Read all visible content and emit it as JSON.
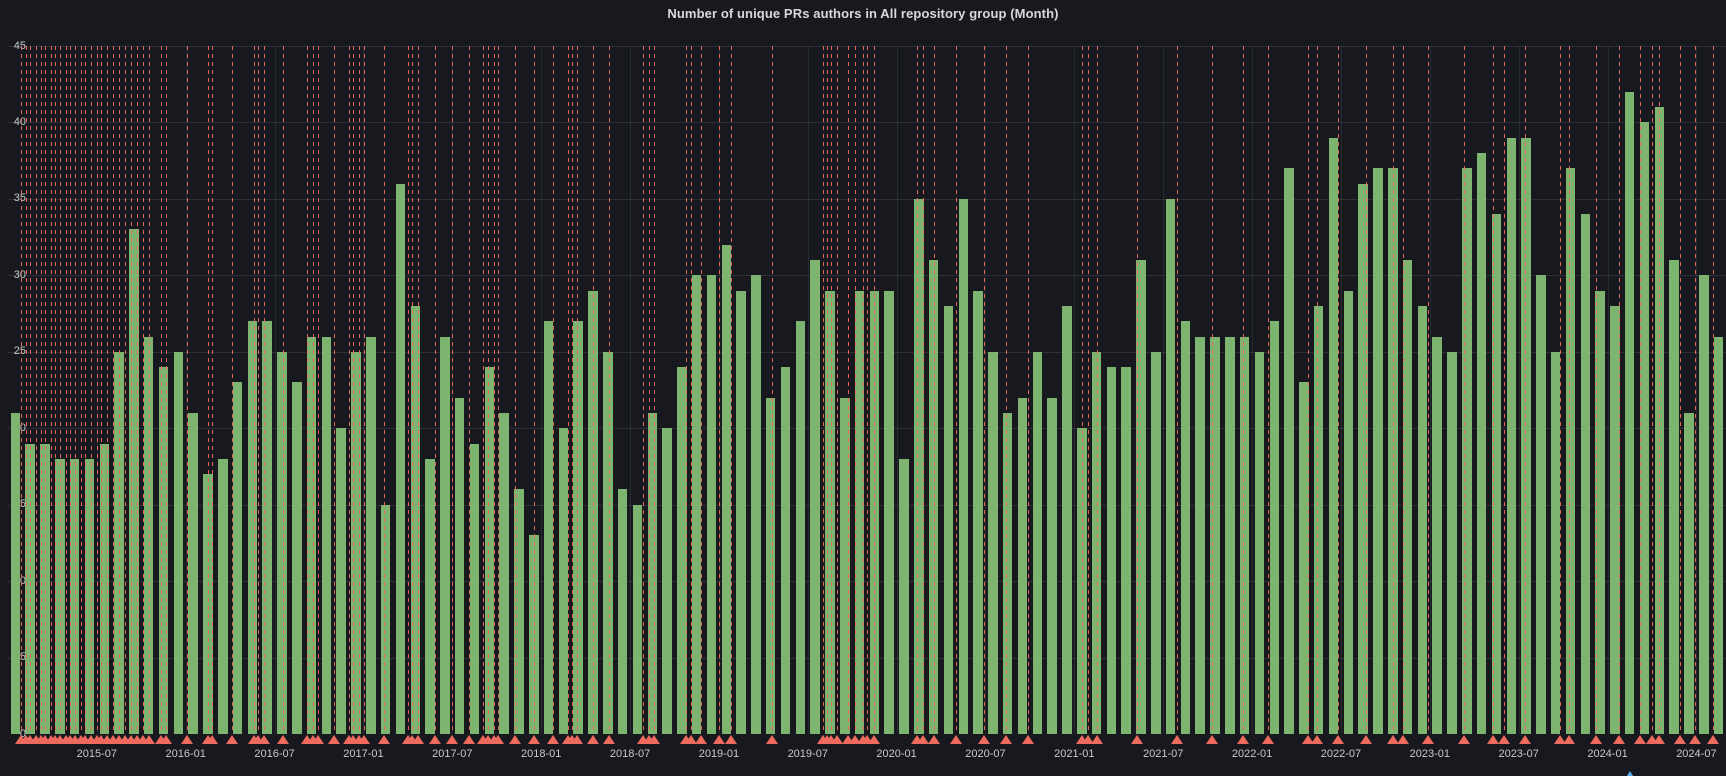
{
  "panel": {
    "title": "Number of unique PRs authors in All repository group (Month)"
  },
  "chart_data": {
    "type": "bar",
    "title": "Number of unique PRs authors in All repository group (Month)",
    "xlabel": "",
    "ylabel": "",
    "ylim": [
      0,
      45
    ],
    "y_ticks": [
      0,
      5,
      10,
      15,
      20,
      25,
      30,
      35,
      40,
      45
    ],
    "grid": true,
    "legend_position": "none",
    "bar_color": "#7db46f",
    "annotation_color": "#ee695e",
    "blue_marker_color": "#58a6e8",
    "x_start": "2015-01",
    "x_tick_labels": [
      "2015-07",
      "2016-01",
      "2016-07",
      "2017-01",
      "2017-07",
      "2018-01",
      "2018-07",
      "2019-01",
      "2019-07",
      "2020-01",
      "2020-07",
      "2021-01",
      "2021-07",
      "2022-01",
      "2022-07",
      "2023-01",
      "2023-07",
      "2024-01",
      "2024-07"
    ],
    "categories": [
      "2015-01",
      "2015-02",
      "2015-03",
      "2015-04",
      "2015-05",
      "2015-06",
      "2015-07",
      "2015-08",
      "2015-09",
      "2015-10",
      "2015-11",
      "2015-12",
      "2016-01",
      "2016-02",
      "2016-03",
      "2016-04",
      "2016-05",
      "2016-06",
      "2016-07",
      "2016-08",
      "2016-09",
      "2016-10",
      "2016-11",
      "2016-12",
      "2017-01",
      "2017-02",
      "2017-03",
      "2017-04",
      "2017-05",
      "2017-06",
      "2017-07",
      "2017-08",
      "2017-09",
      "2017-10",
      "2017-11",
      "2017-12",
      "2018-01",
      "2018-02",
      "2018-03",
      "2018-04",
      "2018-05",
      "2018-06",
      "2018-07",
      "2018-08",
      "2018-09",
      "2018-10",
      "2018-11",
      "2018-12",
      "2019-01",
      "2019-02",
      "2019-03",
      "2019-04",
      "2019-05",
      "2019-06",
      "2019-07",
      "2019-08",
      "2019-09",
      "2019-10",
      "2019-11",
      "2019-12",
      "2020-01",
      "2020-02",
      "2020-03",
      "2020-04",
      "2020-05",
      "2020-06",
      "2020-07",
      "2020-08",
      "2020-09",
      "2020-10",
      "2020-11",
      "2020-12",
      "2021-01",
      "2021-02",
      "2021-03",
      "2021-04",
      "2021-05",
      "2021-06",
      "2021-07",
      "2021-08",
      "2021-09",
      "2021-10",
      "2021-11",
      "2021-12",
      "2022-01",
      "2022-02",
      "2022-03",
      "2022-04",
      "2022-05",
      "2022-06",
      "2022-07",
      "2022-08",
      "2022-09",
      "2022-10",
      "2022-11",
      "2022-12",
      "2023-01",
      "2023-02",
      "2023-03",
      "2023-04",
      "2023-05",
      "2023-06",
      "2023-07",
      "2023-08",
      "2023-09",
      "2023-10",
      "2023-11",
      "2023-12",
      "2024-01",
      "2024-02",
      "2024-03",
      "2024-04",
      "2024-05",
      "2024-06",
      "2024-07",
      "2024-08"
    ],
    "values": [
      21,
      19,
      19,
      18,
      18,
      18,
      19,
      25,
      33,
      26,
      24,
      25,
      21,
      17,
      18,
      23,
      27,
      27,
      25,
      23,
      26,
      26,
      20,
      25,
      26,
      15,
      36,
      28,
      18,
      26,
      22,
      19,
      24,
      21,
      16,
      13,
      27,
      20,
      27,
      29,
      25,
      16,
      15,
      21,
      20,
      24,
      30,
      30,
      32,
      29,
      30,
      22,
      24,
      27,
      31,
      29,
      22,
      29,
      29,
      29,
      18,
      35,
      31,
      28,
      35,
      29,
      25,
      21,
      22,
      25,
      22,
      28,
      20,
      25,
      24,
      24,
      31,
      25,
      35,
      27,
      26,
      26,
      26,
      26,
      25,
      27,
      37,
      23,
      28,
      39,
      29,
      36,
      37,
      37,
      31,
      28,
      26,
      25,
      37,
      38,
      34,
      39,
      39,
      30,
      25,
      37,
      34,
      29,
      28,
      42,
      40,
      41,
      31,
      21,
      30,
      26
    ],
    "annotations_months": [
      0.9,
      1.2,
      1.5,
      1.9,
      2.2,
      2.5,
      2.9,
      3.2,
      3.5,
      3.9,
      4.2,
      4.5,
      4.9,
      5.2,
      5.6,
      6.0,
      6.3,
      6.7,
      7.1,
      7.5,
      7.9,
      8.3,
      8.7,
      9.1,
      9.5,
      10.3,
      10.7,
      12.1,
      13.5,
      13.8,
      15.1,
      16.6,
      16.9,
      17.3,
      18.6,
      20.2,
      20.6,
      20.9,
      22.0,
      23.0,
      23.3,
      23.7,
      24.05,
      25.4,
      27.0,
      27.3,
      27.7,
      28.8,
      30.0,
      31.1,
      32.1,
      32.4,
      32.8,
      33.1,
      34.2,
      35.5,
      36.8,
      37.8,
      38.1,
      38.4,
      39.5,
      40.6,
      42.9,
      43.3,
      43.6,
      45.8,
      46.1,
      46.8,
      48.0,
      48.8,
      51.6,
      55.0,
      55.3,
      55.6,
      56.0,
      56.7,
      57.2,
      57.7,
      58.0,
      58.5,
      61.4,
      61.8,
      62.5,
      64.0,
      65.9,
      67.4,
      68.9,
      72.5,
      72.9,
      73.5,
      76.2,
      78.9,
      81.3,
      83.4,
      85.1,
      87.8,
      88.4,
      89.8,
      91.7,
      93.5,
      94.2,
      95.9,
      98.3,
      100.3,
      101.0,
      102.4,
      104.8,
      105.4,
      107.2,
      108.8,
      110.2,
      111.0,
      111.5,
      112.9,
      113.9,
      115.1
    ],
    "blue_marker_month": 109.5
  }
}
